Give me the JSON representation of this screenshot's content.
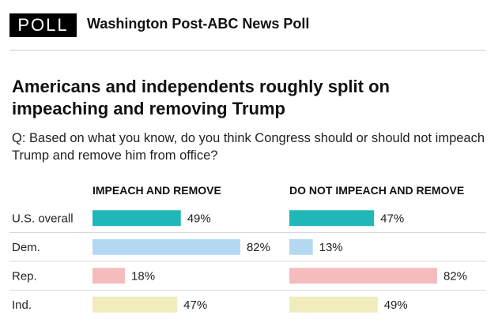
{
  "header": {
    "badge": "POLL",
    "source": "Washington Post-ABC News Poll"
  },
  "headline": "Americans and independents roughly split on impeaching and removing Trump",
  "question": "Q: Based on what you know, do you think Congress should or should not impeach Trump and remove him from office?",
  "chart_data": {
    "type": "bar",
    "orientation": "horizontal",
    "title": "Americans and independents roughly split on impeaching and removing Trump",
    "categories": [
      "U.S. overall",
      "Dem.",
      "Rep.",
      "Ind."
    ],
    "series": [
      {
        "name": "IMPEACH AND REMOVE",
        "values": [
          49,
          82,
          18,
          47
        ],
        "labels": [
          "49%",
          "82%",
          "18%",
          "47%"
        ]
      },
      {
        "name": "DO NOT IMPEACH AND REMOVE",
        "values": [
          47,
          13,
          82,
          49
        ],
        "labels": [
          "47%",
          "13%",
          "82%",
          "49%"
        ]
      }
    ],
    "colors": [
      "#1fb7b8",
      "#b3d9f2",
      "#f5bcbd",
      "#f0ecbb"
    ],
    "value_unit": "%",
    "xlim": [
      0,
      100
    ],
    "xlabel": "",
    "ylabel": ""
  }
}
